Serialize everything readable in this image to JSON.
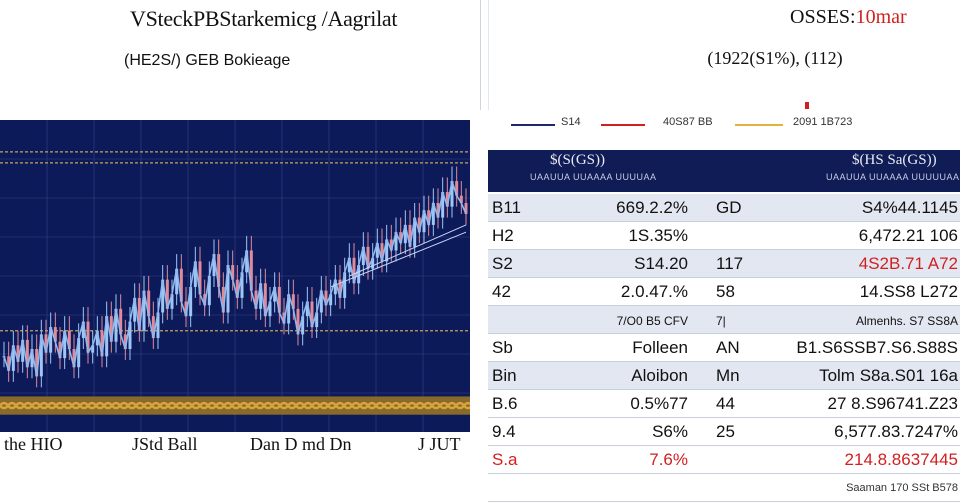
{
  "left_panel": {
    "title": "VSteckPBStarkemicg /Aagrilat",
    "subtitle": "(HE2S/)  GEB Bokieage"
  },
  "right_panel": {
    "title_main": "OSSES:",
    "title_accent": "10mar",
    "subtitle": "(1922(S1%), (112)",
    "legend": [
      {
        "label": "S14",
        "color": "#1b2a6b"
      },
      {
        "label": "40S87 BB",
        "color": "#d21f1f"
      },
      {
        "label": "2091 1B723",
        "color": "#e3b43c"
      }
    ]
  },
  "chart_data": {
    "type": "line",
    "title": "",
    "x_tick_labels": [
      "the HIO",
      "JStd Ball",
      "Dan  D  md Dn",
      "J  JUT"
    ],
    "colors": {
      "background": "#0d1a5a",
      "grid": "#4a5a9c",
      "line": "#8fb8f0",
      "candle_up": "#9ec6f5",
      "candle_down": "#e08a9a",
      "guide": "#c8a15a",
      "band": "#d9a53c",
      "band_dark": "#8a6a2a"
    },
    "series": [
      {
        "values": [
          36,
          28,
          42,
          33,
          45,
          30,
          40,
          25,
          48,
          38,
          52,
          44,
          35,
          50,
          40,
          30,
          46,
          55,
          38,
          42,
          50,
          36,
          58,
          44,
          62,
          48,
          40,
          55,
          68,
          50,
          72,
          58,
          46,
          60,
          78,
          62,
          70,
          84,
          66,
          58,
          74,
          88,
          70,
          64,
          80,
          92,
          74,
          60,
          86,
          78,
          68,
          82,
          94,
          72,
          62,
          76,
          58,
          66,
          74,
          60,
          54,
          70,
          62,
          48,
          58,
          66,
          52,
          60,
          72,
          64,
          70,
          78,
          68,
          82,
          90,
          76,
          86,
          96,
          84,
          90,
          98,
          88,
          100,
          94,
          104,
          98,
          108,
          96,
          112,
          104,
          116,
          108,
          120,
          112,
          126,
          118,
          132,
          124,
          120,
          114
        ]
      }
    ],
    "trend_lines": [
      {
        "from": [
          70,
          74
        ],
        "to": [
          99,
          104
        ]
      },
      {
        "from": [
          74,
          80
        ],
        "to": [
          99,
          108
        ]
      }
    ],
    "guide_levels": [
      148,
      142,
      50
    ],
    "band_level": [
      4,
      14
    ],
    "ylim": [
      0,
      160
    ],
    "xlim": [
      0,
      99
    ]
  },
  "table": {
    "headers": [
      {
        "label": "$(S(GS))",
        "sub": "UAAUUA UUAAAA UUUUAA"
      },
      {
        "label": "$(HS Sa(GS))",
        "sub": "UAAUUA UUAAAA UUUUUAA"
      }
    ],
    "rows": [
      {
        "c0": "B11",
        "c1": "669.2.2%",
        "c2": "GD",
        "c3": "S4%44.1145",
        "style": "alt"
      },
      {
        "c0": "H2",
        "c1": "1S.35%",
        "c2": "",
        "c3": "6,472.21 106",
        "style": "plain"
      },
      {
        "c0": "S2",
        "c1": "S14.20",
        "c2": "117",
        "c3": "4S2B.71 A72",
        "style": "alt",
        "c3_red": true
      },
      {
        "c0": "42",
        "c1": "2.0.47.%",
        "c2": "58",
        "c3": "14.SS8 L272",
        "style": "plain"
      },
      {
        "c0": "",
        "c1": "7/O0 B5 CFV",
        "c2": "7|",
        "c3": "Almenhs. S7 SS8A",
        "style": "alt",
        "small": true
      },
      {
        "c0": "Sb",
        "c1": "Folleen",
        "c2": "AN",
        "c3": "B1.S6SSB7.S6.S88S",
        "style": "plain"
      },
      {
        "c0": "Bin",
        "c1": "Aloibon",
        "c2": "Mn",
        "c3": "Tolm S8a.S01 16a",
        "style": "alt"
      },
      {
        "c0": "B.6",
        "c1": "0.5%77",
        "c2": "44",
        "c3": "27 8.S96741.Z23",
        "style": "plain"
      },
      {
        "c0": "9.4",
        "c1": "S6%",
        "c2": "25",
        "c3": "6,577.83.7247%",
        "style": "plain"
      },
      {
        "c0": "S.a",
        "c1": "7.6%",
        "c2": "",
        "c3": "214.8.8637445",
        "style": "plain",
        "red": true
      },
      {
        "c0": "",
        "c1": "",
        "c2": "",
        "c3": "Saaman 170 SSt B578",
        "style": "plain",
        "tiny": true
      }
    ]
  }
}
